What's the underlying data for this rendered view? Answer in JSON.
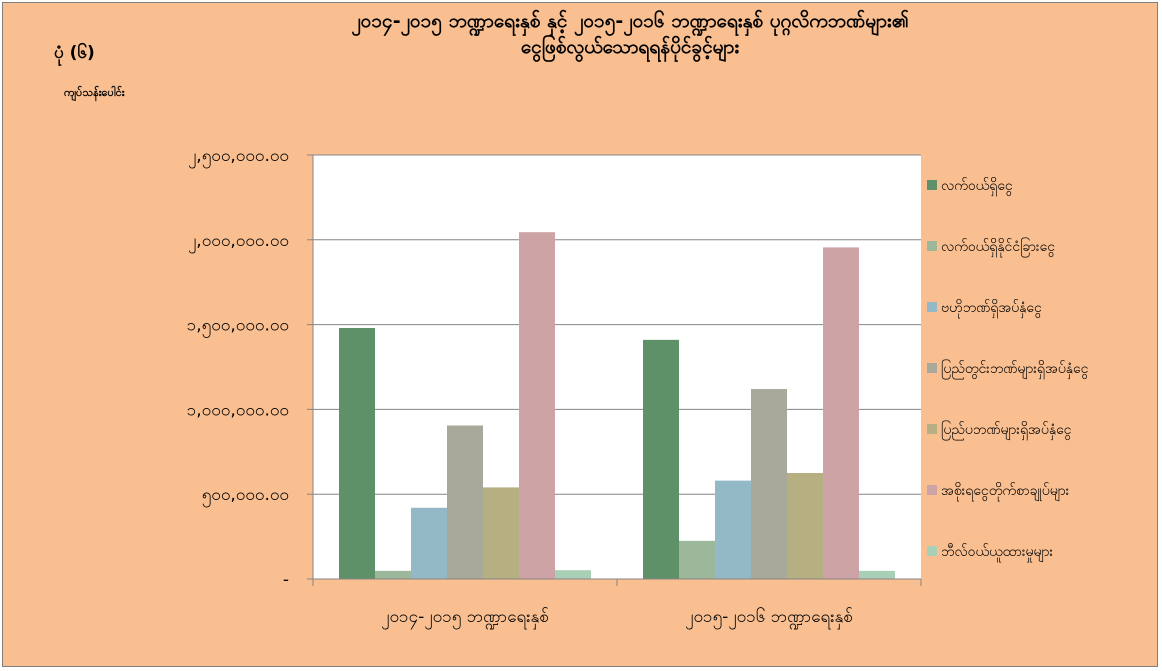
{
  "figure_label": "ပုံ (၆)",
  "unit_label": "ကျပ်သန်းပေါင်း",
  "chart_data": {
    "type": "bar",
    "title": "၂၀၁၄-၂၀၁၅ ဘဏ္ဍာရေးနှစ် နှင့် ၂၀၁၅-၂၀၁၆ ဘဏ္ဍာရေးနှစ် ပုဂ္ဂလိကဘဏ်များ၏ ငွေဖြစ်လွယ်သောရရန်ပိုင်ခွင့်များ",
    "title_lines": [
      "၂၀၁၄-၂၀၁၅ ဘဏ္ဍာရေးနှစ် နှင့် ၂၀၁၅-၂၀၁၆ ဘဏ္ဍာရေးနှစ် ပုဂ္ဂလိကဘဏ်များ၏",
      "ငွေဖြစ်လွယ်သောရရန်ပိုင်ခွင့်များ"
    ],
    "categories": [
      "၂၀၁၄-၂၀၁၅ ဘဏ္ဍာရေးနှစ်",
      "၂၀၁၅-၂၀၁၆ ဘဏ္ဍာရေးနှစ်"
    ],
    "ylim": [
      0,
      2500000
    ],
    "ytick_values": [
      0,
      500000,
      1000000,
      1500000,
      2000000,
      2500000
    ],
    "ytick_labels": [
      "-",
      "၅၀၀,၀၀၀.၀၀",
      "၁,၀၀၀,၀၀၀.၀၀",
      "၁,၅၀၀,၀၀၀.၀၀",
      "၂,၀၀၀,၀၀၀.၀၀",
      "၂,၅၀၀,၀၀၀.၀၀"
    ],
    "grid": true,
    "legend_position": "right",
    "series": [
      {
        "name": "လက်ဝယ်ရှိငွေ",
        "color": "#5F9168",
        "values": [
          1480000,
          1410000
        ]
      },
      {
        "name": "လက်ဝယ်ရှိနိုင်ငံခြားငွေ",
        "color": "#9CB79A",
        "values": [
          48000,
          225000
        ]
      },
      {
        "name": "ဗဟိုဘဏ်ရှိအပ်နှံငွေ",
        "color": "#93B8C6",
        "values": [
          420000,
          580000
        ]
      },
      {
        "name": "ပြည်တွင်းဘဏ်များရှိအပ်နှံငွေ",
        "color": "#A8A89B",
        "values": [
          905000,
          1120000
        ]
      },
      {
        "name": "ပြည်ပဘဏ်များရှိအပ်နှံငွေ",
        "color": "#B5AF82",
        "values": [
          540000,
          625000
        ]
      },
      {
        "name": "အစိုးရငွေတိုက်စာချုပ်များ",
        "color": "#CDA3A5",
        "values": [
          2045000,
          1955000
        ]
      },
      {
        "name": "ဘီလ်ဝယ်ယူထားမှုများ",
        "color": "#A9CFB6",
        "values": [
          52000,
          48000
        ]
      }
    ]
  }
}
